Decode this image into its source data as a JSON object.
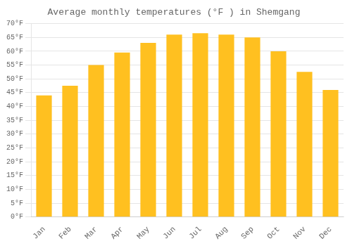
{
  "chart_data": {
    "type": "bar",
    "title": "Average monthly temperatures (°F ) in Shemgang",
    "categories": [
      "Jan",
      "Feb",
      "Mar",
      "Apr",
      "May",
      "Jun",
      "Jul",
      "Aug",
      "Sep",
      "Oct",
      "Nov",
      "Dec"
    ],
    "values": [
      44,
      47.5,
      55,
      59.5,
      63,
      66,
      66.5,
      66,
      65,
      60,
      52.5,
      46
    ],
    "color": "#FFC020",
    "ylim": [
      0,
      70
    ],
    "yticks": [
      {
        "value": 0,
        "label": "0°F"
      },
      {
        "value": 5,
        "label": "5°F"
      },
      {
        "value": 10,
        "label": "10°F"
      },
      {
        "value": 15,
        "label": "15°F"
      },
      {
        "value": 20,
        "label": "20°F"
      },
      {
        "value": 25,
        "label": "25°F"
      },
      {
        "value": 30,
        "label": "30°F"
      },
      {
        "value": 35,
        "label": "35°F"
      },
      {
        "value": 40,
        "label": "40°F"
      },
      {
        "value": 45,
        "label": "45°F"
      },
      {
        "value": 50,
        "label": "50°F"
      },
      {
        "value": 55,
        "label": "55°F"
      },
      {
        "value": 60,
        "label": "60°F"
      },
      {
        "value": 65,
        "label": "65°F"
      },
      {
        "value": 70,
        "label": "70°F"
      }
    ],
    "grid": true
  }
}
